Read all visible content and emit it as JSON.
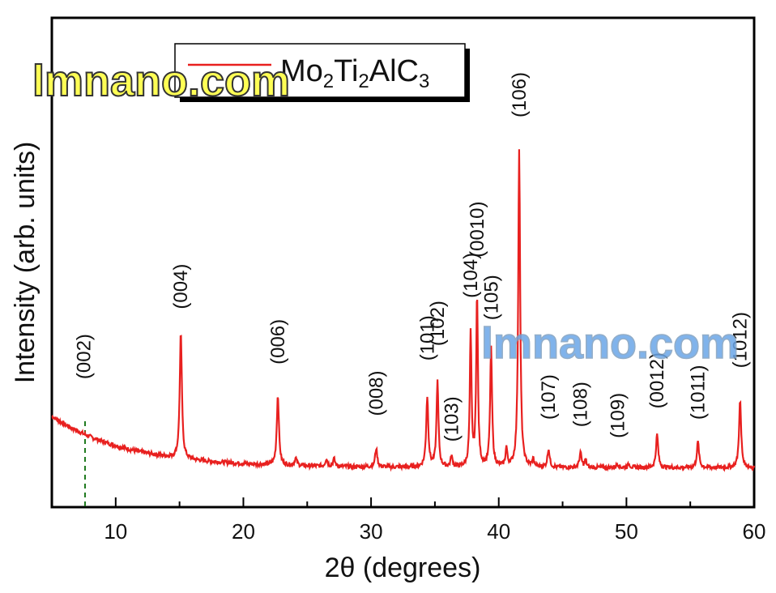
{
  "chart_data": {
    "type": "line",
    "xlabel": "2θ (degrees)",
    "ylabel": "Intensity (arb. units)",
    "xlim": [
      5,
      60
    ],
    "ylim": [
      0,
      100
    ],
    "x_ticks": [
      10,
      20,
      30,
      40,
      50,
      60
    ],
    "y_ticks": [],
    "grid": false,
    "legend_position": "top-left",
    "series": [
      {
        "name": "Mo2Ti2AlC3",
        "color": "#e8201f",
        "baseline": {
          "start": 19,
          "end": 5,
          "decay_per_degree": 0.17
        },
        "peaks": [
          {
            "x": 15.1,
            "height": 34,
            "width": 0.1
          },
          {
            "x": 22.7,
            "height": 19,
            "width": 0.1
          },
          {
            "x": 24.1,
            "height": 2,
            "width": 0.1
          },
          {
            "x": 26.5,
            "height": 2,
            "width": 0.1
          },
          {
            "x": 27.1,
            "height": 2,
            "width": 0.1
          },
          {
            "x": 30.4,
            "height": 5,
            "width": 0.1
          },
          {
            "x": 34.4,
            "height": 19,
            "width": 0.1
          },
          {
            "x": 35.2,
            "height": 23,
            "width": 0.09
          },
          {
            "x": 36.3,
            "height": 3,
            "width": 0.08
          },
          {
            "x": 37.8,
            "height": 36,
            "width": 0.08
          },
          {
            "x": 38.3,
            "height": 47,
            "width": 0.08
          },
          {
            "x": 39.4,
            "height": 32,
            "width": 0.09
          },
          {
            "x": 40.6,
            "height": 5,
            "width": 0.08
          },
          {
            "x": 41.6,
            "height": 86,
            "width": 0.09
          },
          {
            "x": 42.7,
            "height": 2,
            "width": 0.08
          },
          {
            "x": 43.9,
            "height": 5,
            "width": 0.1
          },
          {
            "x": 46.4,
            "height": 4,
            "width": 0.1
          },
          {
            "x": 46.8,
            "height": 2,
            "width": 0.08
          },
          {
            "x": 49.3,
            "height": 1,
            "width": 0.1
          },
          {
            "x": 50.2,
            "height": 1,
            "width": 0.1
          },
          {
            "x": 52.4,
            "height": 9,
            "width": 0.1
          },
          {
            "x": 55.6,
            "height": 7,
            "width": 0.1
          },
          {
            "x": 58.9,
            "height": 18,
            "width": 0.1
          }
        ]
      }
    ],
    "annotations": [
      {
        "text": "(002)",
        "x": 7.5,
        "y": 29
      },
      {
        "text": "(004)",
        "x": 15.1,
        "y": 48
      },
      {
        "text": "(006)",
        "x": 22.7,
        "y": 33
      },
      {
        "text": "(008)",
        "x": 30.4,
        "y": 19
      },
      {
        "text": "(101)",
        "x": 34.4,
        "y": 34
      },
      {
        "text": "(102)",
        "x": 35.2,
        "y": 38
      },
      {
        "text": "(103)",
        "x": 36.3,
        "y": 12
      },
      {
        "text": "(104)",
        "x": 37.8,
        "y": 51
      },
      {
        "text": "(0010)",
        "x": 38.3,
        "y": 62
      },
      {
        "text": "(105)",
        "x": 39.4,
        "y": 45
      },
      {
        "text": "(106)",
        "x": 41.6,
        "y": 100
      },
      {
        "text": "(107)",
        "x": 43.9,
        "y": 18
      },
      {
        "text": "(108)",
        "x": 46.4,
        "y": 16
      },
      {
        "text": "(109)",
        "x": 49.3,
        "y": 13
      },
      {
        "text": "(0012)",
        "x": 52.4,
        "y": 21
      },
      {
        "text": "(1011)",
        "x": 55.6,
        "y": 18
      },
      {
        "text": "(1012)",
        "x": 58.9,
        "y": 32
      }
    ],
    "reference_line": {
      "x": 7.6,
      "style": "dashed",
      "color": "#1f7a1f"
    }
  },
  "legend": {
    "label_parts": [
      "Mo",
      "2",
      "Ti",
      "2",
      "AlC",
      "3"
    ]
  },
  "watermarks": [
    {
      "text": "lmnano.com",
      "color": "#ffff55",
      "stroke": "#333333"
    },
    {
      "text": "lmnano.com",
      "color": "#6aa6e8",
      "stroke": "#7f9fbf"
    }
  ]
}
